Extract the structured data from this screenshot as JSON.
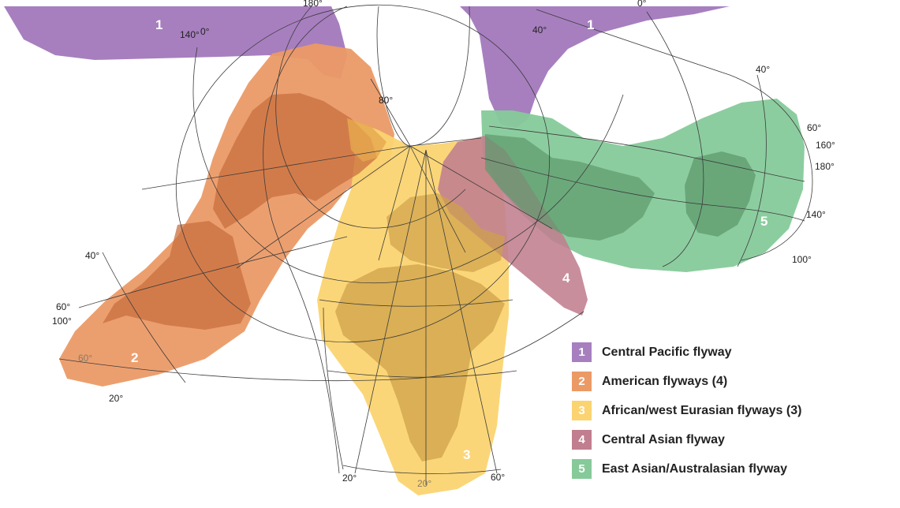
{
  "map": {
    "zones": [
      {
        "id": 1,
        "number": "1",
        "color": "#a77fbf"
      },
      {
        "id": 2,
        "number": "2",
        "color": "#eb9a66"
      },
      {
        "id": 3,
        "number": "3",
        "color": "#fbd471"
      },
      {
        "id": 4,
        "number": "4",
        "color": "#c07e8e"
      },
      {
        "id": 5,
        "number": "5",
        "color": "#86ca9a"
      }
    ],
    "degree_labels": {
      "top_180": "180°",
      "left_140": "140°",
      "left_0": "0°",
      "top_0": "0°",
      "mid_40": "40°",
      "pole_80": "80°",
      "right_40": "40°",
      "right_60": "60°",
      "right_160": "160°",
      "right_180": "180°",
      "right_140": "140°",
      "right_100": "100°",
      "left_40": "40°",
      "left_60": "60°",
      "left_100": "100°",
      "left_60b": "60°",
      "left_20": "20°",
      "bottom_20": "20°",
      "bottom_20b": "20°",
      "bottom_60": "60°"
    }
  },
  "legend": {
    "items": [
      {
        "number": "1",
        "label": "Central Pacific flyway",
        "color": "#a77fbf"
      },
      {
        "number": "2",
        "label": "American flyways (4)",
        "color": "#eb9a66"
      },
      {
        "number": "3",
        "label": "African/west Eurasian flyways (3)",
        "color": "#fbd471"
      },
      {
        "number": "4",
        "label": "Central Asian flyway",
        "color": "#c07e8e"
      },
      {
        "number": "5",
        "label": "East Asian/Australasian flyway",
        "color": "#86ca9a"
      }
    ]
  }
}
